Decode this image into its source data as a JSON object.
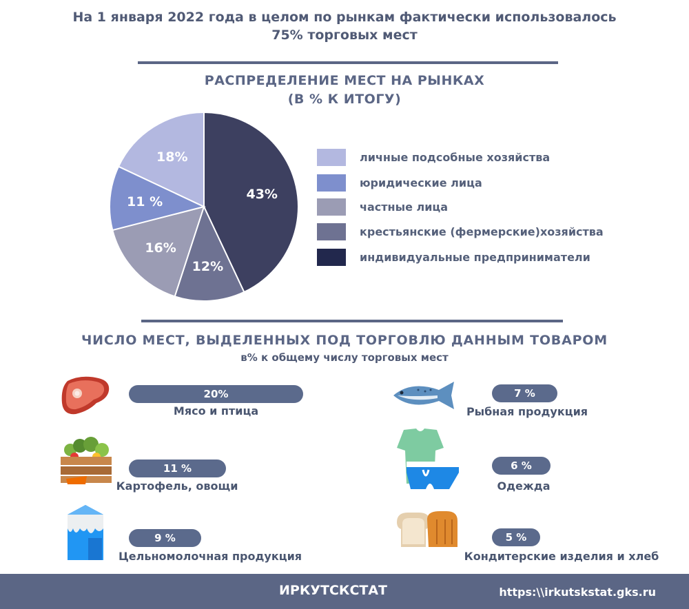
{
  "headline": {
    "line1": "На 1 января 2022 года в целом по рынкам фактически использовалось",
    "line2": "75% торговых мест"
  },
  "pie_section": {
    "title_line1": "РАСПРЕДЕЛЕНИЕ МЕСТ НА РЫНКАХ",
    "title_line2": "(В % К ИТОГУ)"
  },
  "bars_section": {
    "title": "ЧИСЛО МЕСТ, ВЫДЕЛЕННЫХ ПОД ТОРГОВЛЮ ДАННЫМ ТОВАРОМ",
    "subtitle": "в% к общему числу торговых мест"
  },
  "chart_data": [
    {
      "type": "pie",
      "title": "РАСПРЕДЕЛЕНИЕ МЕСТ НА РЫНКАХ (В % К ИТОГУ)",
      "labels": [
        "индивидуальные предприниматели",
        "крестьянские (фермерские)хозяйства",
        "частные лица",
        "юридические лица",
        "личные подсобные хозяйства"
      ],
      "values": [
        43,
        12,
        16,
        11,
        18
      ],
      "value_labels": [
        "43%",
        "12%",
        "16%",
        "11 %",
        "18%"
      ],
      "slice_colors": [
        "#3d4060",
        "#6e7292",
        "#9b9cb4",
        "#7e8fcd",
        "#b3b8e0"
      ],
      "legend": [
        {
          "label": "личные подсобные хозяйства",
          "color": "#b3b8e0"
        },
        {
          "label": "юридические лица",
          "color": "#7e8fcd"
        },
        {
          "label": "частные лица",
          "color": "#9b9cb4"
        },
        {
          "label": "крестьянские (фермерские)хозяйства",
          "color": "#6e7292"
        },
        {
          "label": "индивидуальные предприниматели",
          "color": "#22284d"
        }
      ]
    },
    {
      "type": "bar",
      "title": "ЧИСЛО МЕСТ, ВЫДЕЛЕННЫХ ПОД ТОРГОВЛЮ ДАННЫМ ТОВАРОМ",
      "unit": "в% к общему числу торговых мест",
      "categories": [
        "Мясо и птица",
        "Картофель, овощи",
        "Цельномолочная продукция",
        "Рыбная продукция",
        "Одежда",
        "Кондитерские изделия и  хлеб"
      ],
      "values": [
        20,
        11,
        9,
        7,
        6,
        5
      ],
      "value_labels": [
        "20%",
        "11 %",
        "9 %",
        "7 %",
        "6 %",
        "5 %"
      ],
      "icons": [
        "meat-icon",
        "vegetables-icon",
        "milk-icon",
        "fish-icon",
        "clothes-icon",
        "bread-icon"
      ]
    }
  ],
  "footer": {
    "org": "ИРКУТСКСТАТ",
    "url": "https:\\\\irkutskstat.gks.ru"
  }
}
